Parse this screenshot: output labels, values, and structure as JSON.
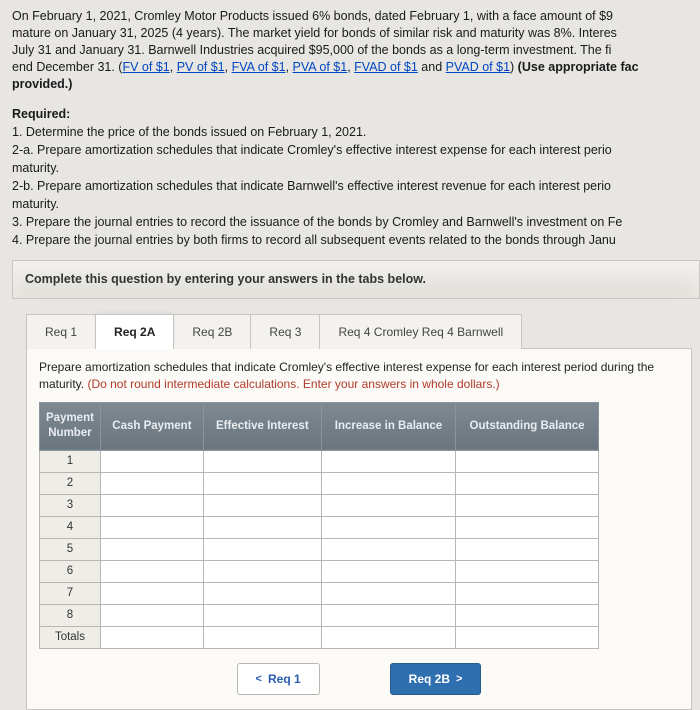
{
  "problem": {
    "line1_pre": "On February 1, 2021, Cromley Motor Products issued 6% bonds, dated February 1, with a face amount of $9",
    "line2": "mature on January 31, 2025 (4 years). The market yield for bonds of similar risk and maturity was 8%. Interes",
    "line3_pre": "July 31 and January 31. Barnwell Industries acquired $95,000 of the bonds as a long-term investment. The fi",
    "line4_pre": "end December 31. (",
    "fv": "FV of $1",
    "pv": "PV of $1",
    "fva": "FVA of $1",
    "pva": "PVA of $1",
    "fvad": "FVAD of $1",
    "pvad": "PVAD of $1",
    "and": " and ",
    "sep": ", ",
    "close": ") ",
    "use_appr": "(Use appropriate fac",
    "provided": "provided.)"
  },
  "required": {
    "heading": "Required:",
    "r1": "1. Determine the price of the bonds issued on February 1, 2021.",
    "r2a": "2-a. Prepare amortization schedules that indicate Cromley's effective interest expense for each interest perio",
    "mat1": "maturity.",
    "r2b": "2-b. Prepare amortization schedules that indicate Barnwell's effective interest revenue for each interest perio",
    "mat2": "maturity.",
    "r3": "3. Prepare the journal entries to record the issuance of the bonds by Cromley and Barnwell's investment on Fe",
    "r4": "4. Prepare the journal entries by both firms to record all subsequent events related to the bonds through Janu"
  },
  "complete_bar": "Complete this question by entering your answers in the tabs below.",
  "tabs": {
    "t1": "Req 1",
    "t2": "Req 2A",
    "t3": "Req 2B",
    "t4": "Req 3",
    "t5": "Req 4 Cromley Req 4 Barnwell"
  },
  "panel": {
    "instr_main": "Prepare amortization schedules that indicate Cromley's effective interest expense for each interest period during the ",
    "instr_mat": "maturity. ",
    "instr_hint": "(Do not round intermediate calculations. Enter your answers in whole dollars.)"
  },
  "columns": {
    "c0": "Payment Number",
    "c1": "Cash Payment",
    "c2": "Effective Interest",
    "c3": "Increase in Balance",
    "c4": "Outstanding Balance"
  },
  "rows": [
    "1",
    "2",
    "3",
    "4",
    "5",
    "6",
    "7",
    "8",
    "Totals"
  ],
  "nav": {
    "prev": "Req 1",
    "next": "Req 2B"
  },
  "colors": {
    "page_bg": "#e8e6e3",
    "link": "#0046c0",
    "hint": "#b33b2b",
    "th_bg_top": "#7e8992",
    "th_bg_bot": "#6a757e",
    "btn_next_bg": "#2f6fb0"
  }
}
